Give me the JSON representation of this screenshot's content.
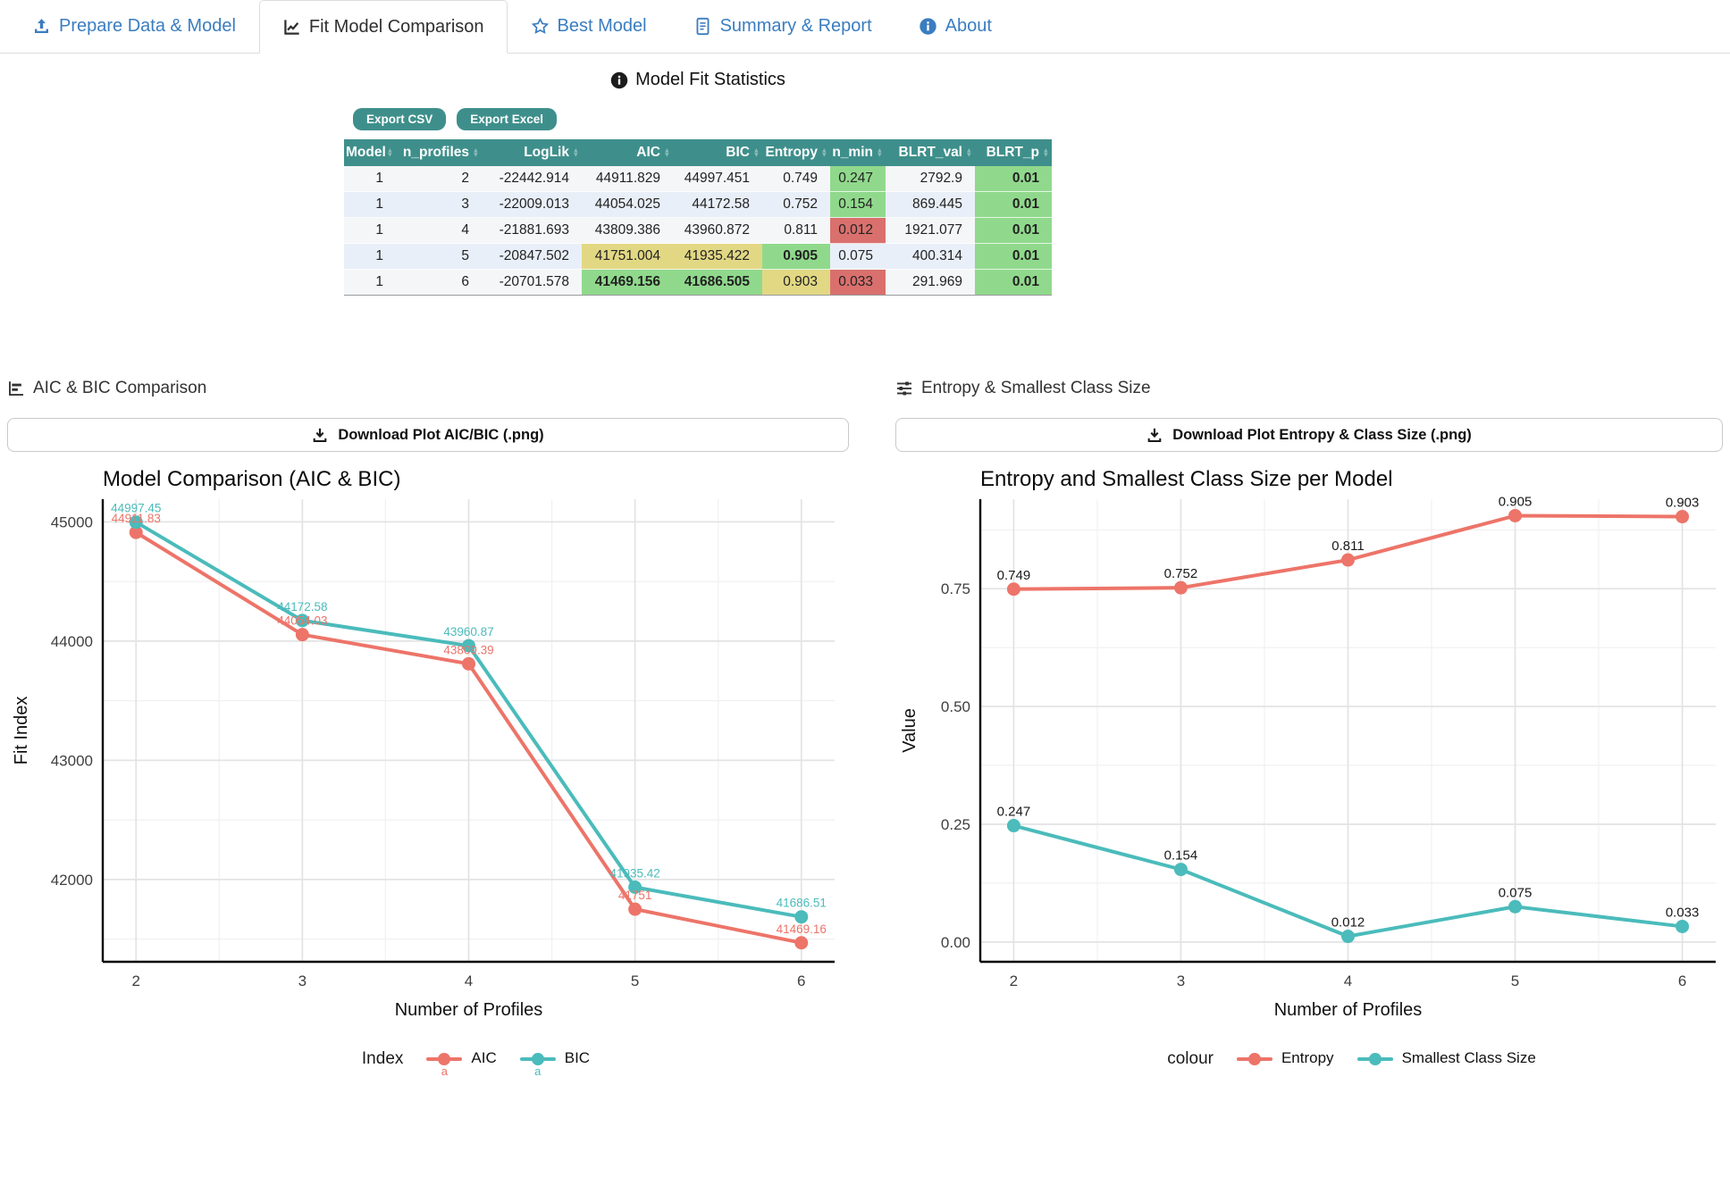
{
  "tabs": {
    "items": [
      {
        "label": "Prepare Data & Model",
        "icon": "upload-icon",
        "active": false
      },
      {
        "label": "Fit Model Comparison",
        "icon": "chart-line-icon",
        "active": true
      },
      {
        "label": "Best Model",
        "icon": "star-icon",
        "active": false
      },
      {
        "label": "Summary & Report",
        "icon": "file-report-icon",
        "active": false
      },
      {
        "label": "About",
        "icon": "info-icon",
        "active": false
      }
    ],
    "link_color": "#3a7dc0",
    "active_color": "#2f2f2f"
  },
  "stats": {
    "heading": "Model Fit Statistics",
    "export_csv_label": "Export CSV",
    "export_excel_label": "Export Excel",
    "table": {
      "header_bg": "#3E8F8B",
      "highlight_colors": {
        "green": "#90d98c",
        "red": "#d9706d",
        "yellow": "#e2d884"
      },
      "columns": [
        "Model",
        "n_profiles",
        "LogLik",
        "AIC",
        "BIC",
        "Entropy",
        "n_min",
        "BLRT_val",
        "BLRT_p"
      ],
      "rows": [
        {
          "cells": [
            {
              "v": "1"
            },
            {
              "v": "2"
            },
            {
              "v": "-22442.914"
            },
            {
              "v": "44911.829"
            },
            {
              "v": "44997.451"
            },
            {
              "v": "0.749"
            },
            {
              "v": "0.247",
              "c": "green"
            },
            {
              "v": "2792.9"
            },
            {
              "v": "0.01",
              "c": "green",
              "b": true
            }
          ]
        },
        {
          "cells": [
            {
              "v": "1"
            },
            {
              "v": "3"
            },
            {
              "v": "-22009.013"
            },
            {
              "v": "44054.025"
            },
            {
              "v": "44172.58"
            },
            {
              "v": "0.752"
            },
            {
              "v": "0.154",
              "c": "green"
            },
            {
              "v": "869.445"
            },
            {
              "v": "0.01",
              "c": "green",
              "b": true
            }
          ]
        },
        {
          "cells": [
            {
              "v": "1"
            },
            {
              "v": "4"
            },
            {
              "v": "-21881.693"
            },
            {
              "v": "43809.386"
            },
            {
              "v": "43960.872"
            },
            {
              "v": "0.811"
            },
            {
              "v": "0.012",
              "c": "red"
            },
            {
              "v": "1921.077"
            },
            {
              "v": "0.01",
              "c": "green",
              "b": true
            }
          ]
        },
        {
          "cells": [
            {
              "v": "1"
            },
            {
              "v": "5"
            },
            {
              "v": "-20847.502"
            },
            {
              "v": "41751.004",
              "c": "yellow"
            },
            {
              "v": "41935.422",
              "c": "yellow"
            },
            {
              "v": "0.905",
              "c": "green",
              "b": true
            },
            {
              "v": "0.075"
            },
            {
              "v": "400.314"
            },
            {
              "v": "0.01",
              "c": "green",
              "b": true
            }
          ]
        },
        {
          "cells": [
            {
              "v": "1"
            },
            {
              "v": "6"
            },
            {
              "v": "-20701.578"
            },
            {
              "v": "41469.156",
              "c": "green",
              "b": true
            },
            {
              "v": "41686.505",
              "c": "green",
              "b": true
            },
            {
              "v": "0.903",
              "c": "yellow"
            },
            {
              "v": "0.033",
              "c": "red"
            },
            {
              "v": "291.969"
            },
            {
              "v": "0.01",
              "c": "green",
              "b": true
            }
          ]
        }
      ]
    }
  },
  "panels": [
    {
      "section_title": "AIC & BIC Comparison",
      "section_icon": "chart-bars-icon",
      "download_label": "Download Plot AIC/BIC (.png)"
    },
    {
      "section_title": "Entropy & Smallest Class Size",
      "section_icon": "sliders-icon",
      "download_label": "Download Plot Entropy & Class Size (.png)"
    }
  ],
  "chart_data": [
    {
      "type": "line",
      "title": "Model Comparison (AIC & BIC)",
      "xlabel": "Number of Profiles",
      "ylabel": "Fit Index",
      "x": [
        2,
        3,
        4,
        5,
        6
      ],
      "xlim": [
        1.8,
        6.2
      ],
      "ylim": [
        41310,
        45190
      ],
      "yticks": [
        42000,
        43000,
        44000,
        45000
      ],
      "ytick_labels": [
        "42000",
        "43000",
        "44000",
        "45000"
      ],
      "grid": true,
      "legend_title": "Index",
      "legend_position": "bottom",
      "legend_key_letter": "a",
      "label_color_mode": "series",
      "series": [
        {
          "name": "AIC",
          "color": "#ED7469",
          "values": [
            44911.829,
            44054.025,
            43809.386,
            41751.004,
            41469.156
          ],
          "point_labels": [
            "44911.83",
            "44054.03",
            "43809.39",
            "41751",
            "41469.16"
          ]
        },
        {
          "name": "BIC",
          "color": "#4BBBBB",
          "values": [
            44997.451,
            44172.58,
            43960.872,
            41935.422,
            41686.505
          ],
          "point_labels": [
            "44997.45",
            "44172.58",
            "43960.87",
            "41935.42",
            "41686.51"
          ]
        }
      ]
    },
    {
      "type": "line",
      "title": "Entropy and Smallest Class Size per Model",
      "xlabel": "Number of Profiles",
      "ylabel": "Value",
      "x": [
        2,
        3,
        4,
        5,
        6
      ],
      "xlim": [
        1.8,
        6.2
      ],
      "ylim": [
        -0.042,
        0.94
      ],
      "yticks": [
        0,
        0.25,
        0.5,
        0.75
      ],
      "ytick_labels": [
        "0.00",
        "0.25",
        "0.50",
        "0.75"
      ],
      "grid": true,
      "legend_title": "colour",
      "legend_position": "bottom",
      "legend_key_letter": "",
      "label_color_mode": "black",
      "series": [
        {
          "name": "Entropy",
          "color": "#ED7469",
          "values": [
            0.749,
            0.752,
            0.811,
            0.905,
            0.903
          ],
          "point_labels": [
            "0.749",
            "0.752",
            "0.811",
            "0.905",
            "0.903"
          ]
        },
        {
          "name": "Smallest Class Size",
          "color": "#4BBBBB",
          "values": [
            0.247,
            0.154,
            0.012,
            0.075,
            0.033
          ],
          "point_labels": [
            "0.247",
            "0.154",
            "0.012",
            "0.075",
            "0.033"
          ]
        }
      ]
    }
  ]
}
